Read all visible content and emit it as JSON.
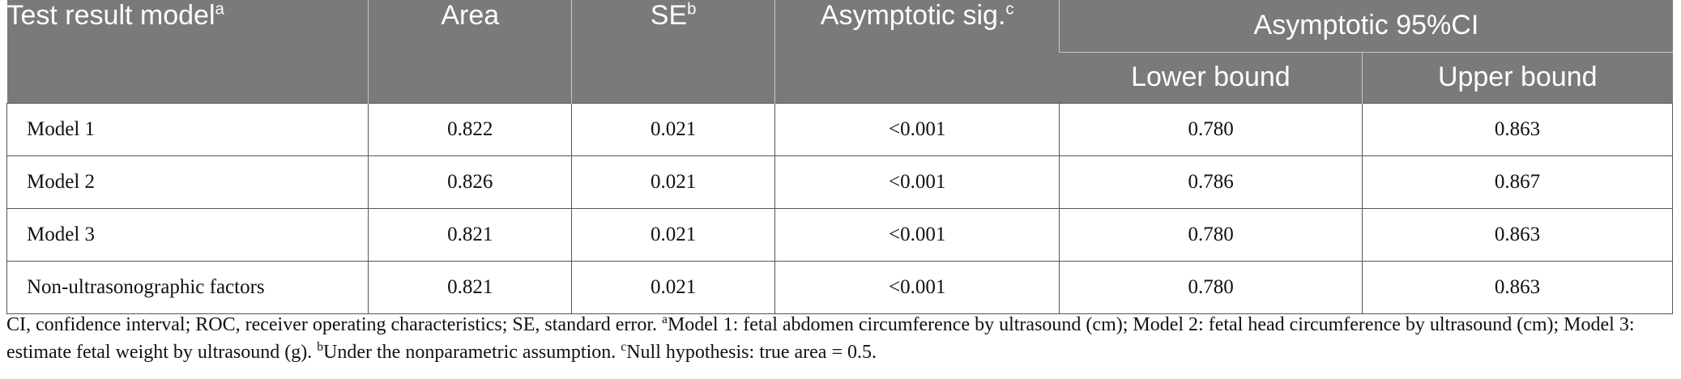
{
  "header": {
    "col1": "Test result model",
    "col1_sup": "a",
    "col2": "Area",
    "col3": "SE",
    "col3_sup": "b",
    "col4": "Asymptotic sig.",
    "col4_sup": "c",
    "group": "Asymptotic 95%CI",
    "sub1": "Lower bound",
    "sub2": "Upper bound"
  },
  "rows": [
    {
      "model": "Model 1",
      "area": "0.822",
      "se": "0.021",
      "sig": "<0.001",
      "lower": "0.780",
      "upper": "0.863"
    },
    {
      "model": "Model 2",
      "area": "0.826",
      "se": "0.021",
      "sig": "<0.001",
      "lower": "0.786",
      "upper": "0.867"
    },
    {
      "model": "Model 3",
      "area": "0.821",
      "se": "0.021",
      "sig": "<0.001",
      "lower": "0.780",
      "upper": "0.863"
    },
    {
      "model": "Non-ultrasonographic factors",
      "area": "0.821",
      "se": "0.021",
      "sig": "<0.001",
      "lower": "0.780",
      "upper": "0.863"
    }
  ],
  "footnote": {
    "abbrev": "CI, confidence interval; ROC, receiver operating characteristics; SE, standard error.",
    "a_mark": "a",
    "a_text": "Model 1: fetal abdomen circumference by ultrasound (cm); Model 2: fetal head circumference by ultrasound (cm); Model 3: estimate fetal weight by ultrasound (g).",
    "b_mark": "b",
    "b_text": "Under the nonparametric assumption.",
    "c_mark": "c",
    "c_text": "Null hypothesis: true area = 0.5."
  }
}
